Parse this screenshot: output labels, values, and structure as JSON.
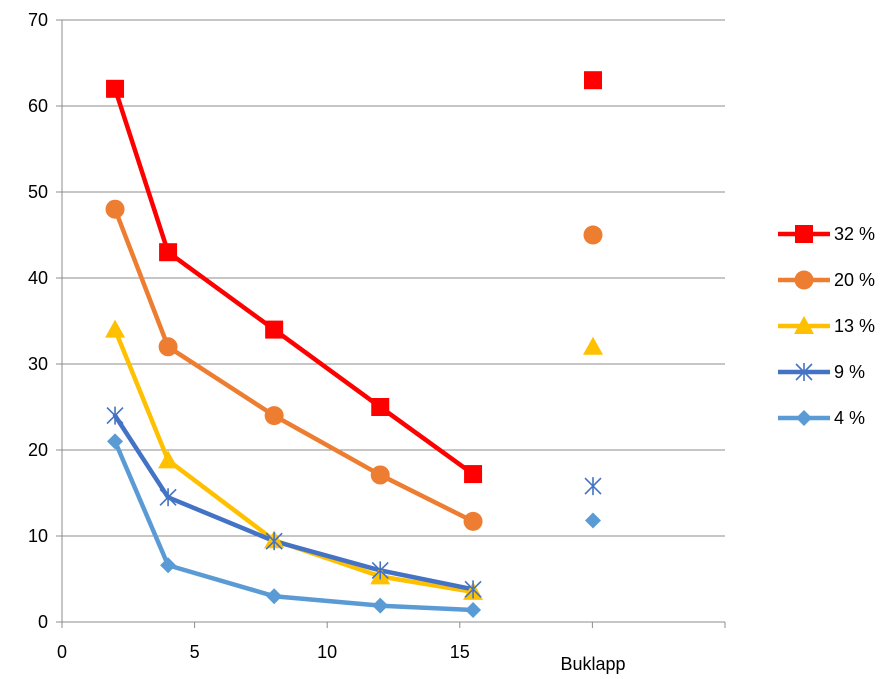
{
  "chart_data": {
    "type": "line",
    "title": "",
    "xlabel": "",
    "ylabel": "",
    "xlim": [
      0,
      25
    ],
    "ylim": [
      0,
      70
    ],
    "x_ticks": [
      0,
      5,
      10,
      15
    ],
    "y_ticks": [
      0,
      10,
      20,
      30,
      40,
      50,
      60,
      70
    ],
    "x_category_label": "Buklapp",
    "grid": "horizontal",
    "legend_position": "right",
    "series": [
      {
        "name": "32 %",
        "color": "#ff0000",
        "marker": "square",
        "x": [
          2,
          4,
          8,
          12,
          15.5
        ],
        "y": [
          62,
          43,
          34,
          25,
          17.2
        ],
        "buklapp": 63
      },
      {
        "name": "20 %",
        "color": "#ed7d31",
        "marker": "circle",
        "x": [
          2,
          4,
          8,
          12,
          15.5
        ],
        "y": [
          48,
          32,
          24,
          17.1,
          11.7
        ],
        "buklapp": 45
      },
      {
        "name": "13 %",
        "color": "#ffc000",
        "marker": "triangle",
        "x": [
          2,
          4,
          8,
          12,
          15.5
        ],
        "y": [
          34,
          18.8,
          9.5,
          5.3,
          3.5
        ],
        "buklapp": 32
      },
      {
        "name": "9 %",
        "color": "#4472c4",
        "marker": "star",
        "x": [
          2,
          4,
          8,
          12,
          15.5
        ],
        "y": [
          24,
          14.5,
          9.4,
          6,
          3.8
        ],
        "buklapp": 15.8
      },
      {
        "name": "4 %",
        "color": "#5b9bd5",
        "marker": "diamond",
        "x": [
          2,
          4,
          8,
          12,
          15.5
        ],
        "y": [
          21,
          6.6,
          3,
          1.9,
          1.4
        ],
        "buklapp": 11.8
      }
    ]
  }
}
